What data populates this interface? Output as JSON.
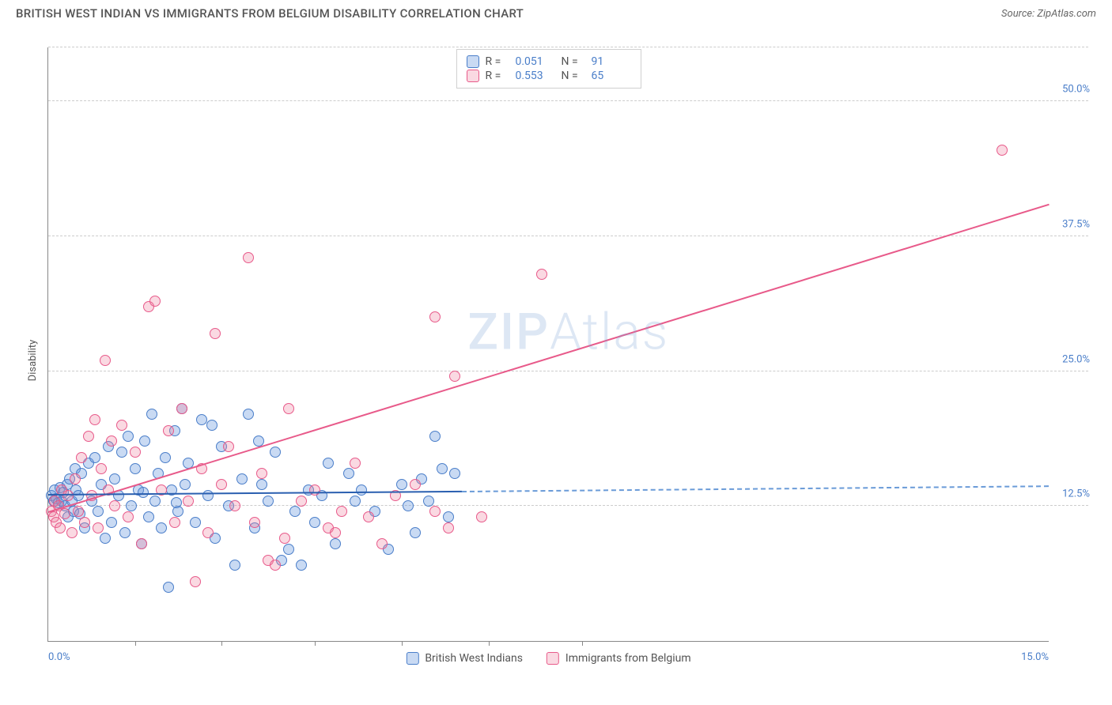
{
  "title": "BRITISH WEST INDIAN VS IMMIGRANTS FROM BELGIUM DISABILITY CORRELATION CHART",
  "source": "Source: ZipAtlas.com",
  "ylabel": "Disability",
  "watermark_a": "ZIP",
  "watermark_b": "Atlas",
  "chart": {
    "type": "scatter",
    "xlim": [
      0,
      15
    ],
    "ylim": [
      0,
      55
    ],
    "x_ticks": [
      0,
      1.3,
      2.6,
      4,
      5.3,
      6.6,
      8,
      15
    ],
    "x_tick_labels": {
      "0": "0.0%",
      "15": "15.0%"
    },
    "y_gridlines": [
      12.5,
      25.0,
      37.5,
      50.0
    ],
    "y_tick_labels": [
      "12.5%",
      "25.0%",
      "37.5%",
      "50.0%"
    ],
    "background_color": "#ffffff",
    "grid_color": "#cccccc",
    "axis_color": "#888888",
    "tick_label_color": "#4a7ec9",
    "marker_radius": 7,
    "series": [
      {
        "name": "British West Indians",
        "color_fill": "rgba(100,150,220,0.35)",
        "color_stroke": "#4a7ec9",
        "trend_color": "#2a5fb0",
        "R": "0.051",
        "N": "91",
        "trend": {
          "x0": 0,
          "y0": 13.6,
          "x1": 6.2,
          "y1": 13.9,
          "extend_x": 15,
          "extend_y": 14.4
        },
        "points": [
          [
            0.05,
            13.5
          ],
          [
            0.08,
            13.0
          ],
          [
            0.1,
            14.0
          ],
          [
            0.12,
            13.2
          ],
          [
            0.15,
            12.8
          ],
          [
            0.18,
            14.2
          ],
          [
            0.2,
            13.0
          ],
          [
            0.22,
            13.8
          ],
          [
            0.25,
            12.5
          ],
          [
            0.28,
            14.5
          ],
          [
            0.3,
            11.5
          ],
          [
            0.32,
            15.0
          ],
          [
            0.35,
            13.0
          ],
          [
            0.38,
            12.0
          ],
          [
            0.4,
            16.0
          ],
          [
            0.42,
            14.0
          ],
          [
            0.45,
            13.5
          ],
          [
            0.48,
            11.8
          ],
          [
            0.5,
            15.5
          ],
          [
            0.55,
            10.5
          ],
          [
            0.6,
            16.5
          ],
          [
            0.65,
            13.0
          ],
          [
            0.7,
            17.0
          ],
          [
            0.75,
            12.0
          ],
          [
            0.8,
            14.5
          ],
          [
            0.85,
            9.5
          ],
          [
            0.9,
            18.0
          ],
          [
            0.95,
            11.0
          ],
          [
            1.0,
            15.0
          ],
          [
            1.05,
            13.5
          ],
          [
            1.1,
            17.5
          ],
          [
            1.15,
            10.0
          ],
          [
            1.2,
            19.0
          ],
          [
            1.25,
            12.5
          ],
          [
            1.3,
            16.0
          ],
          [
            1.35,
            14.0
          ],
          [
            1.4,
            9.0
          ],
          [
            1.45,
            18.5
          ],
          [
            1.5,
            11.5
          ],
          [
            1.55,
            21.0
          ],
          [
            1.6,
            13.0
          ],
          [
            1.65,
            15.5
          ],
          [
            1.7,
            10.5
          ],
          [
            1.75,
            17.0
          ],
          [
            1.8,
            5.0
          ],
          [
            1.85,
            14.0
          ],
          [
            1.9,
            19.5
          ],
          [
            1.95,
            12.0
          ],
          [
            2.0,
            21.5
          ],
          [
            2.1,
            16.5
          ],
          [
            2.2,
            11.0
          ],
          [
            2.3,
            20.5
          ],
          [
            2.4,
            13.5
          ],
          [
            2.5,
            9.5
          ],
          [
            2.6,
            18.0
          ],
          [
            2.7,
            12.5
          ],
          [
            2.8,
            7.0
          ],
          [
            2.9,
            15.0
          ],
          [
            3.0,
            21.0
          ],
          [
            3.1,
            10.5
          ],
          [
            3.2,
            14.5
          ],
          [
            3.3,
            13.0
          ],
          [
            3.4,
            17.5
          ],
          [
            3.5,
            7.5
          ],
          [
            3.6,
            8.5
          ],
          [
            3.7,
            12.0
          ],
          [
            3.8,
            7.0
          ],
          [
            3.9,
            14.0
          ],
          [
            4.0,
            11.0
          ],
          [
            4.1,
            13.5
          ],
          [
            4.3,
            9.0
          ],
          [
            4.5,
            15.5
          ],
          [
            4.7,
            14.0
          ],
          [
            4.9,
            12.0
          ],
          [
            5.1,
            8.5
          ],
          [
            5.3,
            14.5
          ],
          [
            5.5,
            10.0
          ],
          [
            5.7,
            13.0
          ],
          [
            5.9,
            16.0
          ],
          [
            6.1,
            15.5
          ],
          [
            5.6,
            15.0
          ],
          [
            5.4,
            12.5
          ],
          [
            6.0,
            11.5
          ],
          [
            4.2,
            16.5
          ],
          [
            4.6,
            13.0
          ],
          [
            3.15,
            18.5
          ],
          [
            5.8,
            19.0
          ],
          [
            2.05,
            14.5
          ],
          [
            2.45,
            20.0
          ],
          [
            1.92,
            12.8
          ],
          [
            1.42,
            13.8
          ]
        ]
      },
      {
        "name": "Immigrants from Belgium",
        "color_fill": "rgba(240,130,160,0.30)",
        "color_stroke": "#e85a8a",
        "trend_color": "#e85a8a",
        "R": "0.553",
        "N": "65",
        "trend": {
          "x0": 0,
          "y0": 12.0,
          "x1": 15,
          "y1": 40.5
        },
        "points": [
          [
            0.05,
            12.0
          ],
          [
            0.08,
            11.5
          ],
          [
            0.1,
            13.0
          ],
          [
            0.12,
            11.0
          ],
          [
            0.15,
            12.5
          ],
          [
            0.18,
            10.5
          ],
          [
            0.2,
            14.0
          ],
          [
            0.25,
            11.8
          ],
          [
            0.3,
            13.5
          ],
          [
            0.35,
            10.0
          ],
          [
            0.4,
            15.0
          ],
          [
            0.45,
            12.0
          ],
          [
            0.5,
            17.0
          ],
          [
            0.55,
            11.0
          ],
          [
            0.6,
            19.0
          ],
          [
            0.65,
            13.5
          ],
          [
            0.7,
            20.5
          ],
          [
            0.75,
            10.5
          ],
          [
            0.8,
            16.0
          ],
          [
            0.85,
            26.0
          ],
          [
            0.9,
            14.0
          ],
          [
            0.95,
            18.5
          ],
          [
            1.0,
            12.5
          ],
          [
            1.1,
            20.0
          ],
          [
            1.2,
            11.5
          ],
          [
            1.3,
            17.5
          ],
          [
            1.4,
            9.0
          ],
          [
            1.5,
            31.0
          ],
          [
            1.6,
            31.5
          ],
          [
            1.7,
            14.0
          ],
          [
            1.8,
            19.5
          ],
          [
            1.9,
            11.0
          ],
          [
            2.0,
            21.5
          ],
          [
            2.1,
            13.0
          ],
          [
            2.2,
            5.5
          ],
          [
            2.3,
            16.0
          ],
          [
            2.4,
            10.0
          ],
          [
            2.5,
            28.5
          ],
          [
            2.6,
            14.5
          ],
          [
            2.7,
            18.0
          ],
          [
            2.8,
            12.5
          ],
          [
            3.0,
            35.5
          ],
          [
            3.1,
            11.0
          ],
          [
            3.2,
            15.5
          ],
          [
            3.3,
            7.5
          ],
          [
            3.4,
            7.0
          ],
          [
            3.6,
            21.5
          ],
          [
            3.8,
            13.0
          ],
          [
            4.0,
            14.0
          ],
          [
            4.2,
            10.5
          ],
          [
            4.4,
            12.0
          ],
          [
            4.6,
            16.5
          ],
          [
            4.8,
            11.5
          ],
          [
            5.0,
            9.0
          ],
          [
            5.2,
            13.5
          ],
          [
            5.5,
            14.5
          ],
          [
            5.8,
            12.0
          ],
          [
            5.8,
            30.0
          ],
          [
            6.0,
            10.5
          ],
          [
            6.1,
            24.5
          ],
          [
            6.5,
            11.5
          ],
          [
            4.3,
            10.0
          ],
          [
            7.4,
            34.0
          ],
          [
            14.3,
            45.5
          ],
          [
            3.55,
            9.5
          ]
        ]
      }
    ]
  },
  "legend_top": {
    "r_label": "R =",
    "n_label": "N ="
  },
  "legend_bottom": {
    "items": [
      "British West Indians",
      "Immigrants from Belgium"
    ]
  }
}
